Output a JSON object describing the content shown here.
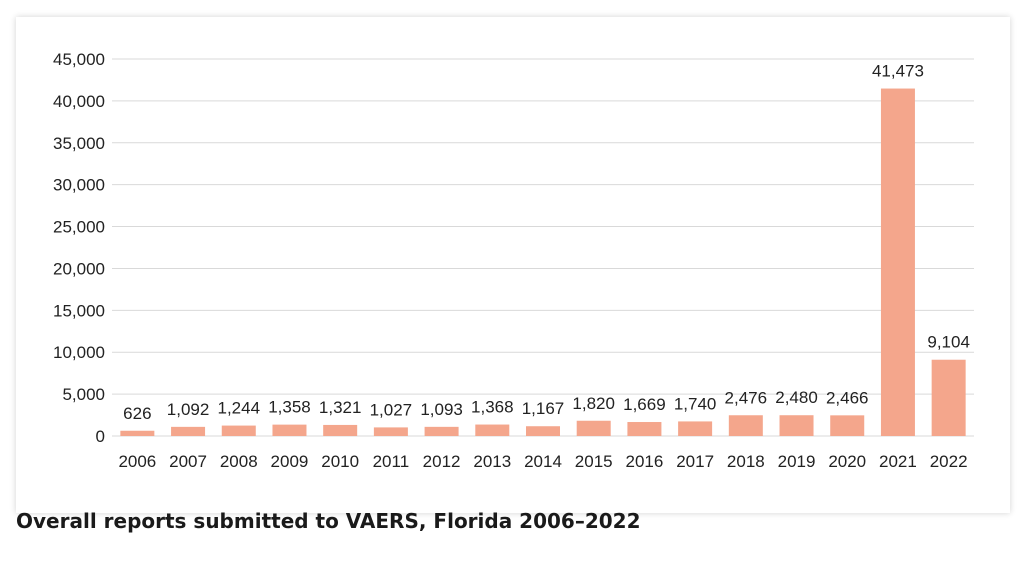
{
  "caption": "Overall reports submitted to VAERS, Florida 2006–2022",
  "colors": {
    "bar": "#f4a68c",
    "gridline": "#d9d9d9",
    "text": "#222222"
  },
  "chart_data": {
    "type": "bar",
    "categories": [
      "2006",
      "2007",
      "2008",
      "2009",
      "2010",
      "2011",
      "2012",
      "2013",
      "2014",
      "2015",
      "2016",
      "2017",
      "2018",
      "2019",
      "2020",
      "2021",
      "2022"
    ],
    "values": [
      626,
      1092,
      1244,
      1358,
      1321,
      1027,
      1093,
      1368,
      1167,
      1820,
      1669,
      1740,
      2476,
      2480,
      2466,
      41473,
      9104
    ],
    "value_labels": [
      "626",
      "1,092",
      "1,244",
      "1,358",
      "1,321",
      "1,027",
      "1,093",
      "1,368",
      "1,167",
      "1,820",
      "1,669",
      "1,740",
      "2,476",
      "2,480",
      "2,466",
      "41,473",
      "9,104"
    ],
    "y_ticks": [
      "0",
      "5,000",
      "10,000",
      "15,000",
      "20,000",
      "25,000",
      "30,000",
      "35,000",
      "40,000",
      "45,000"
    ],
    "ylim": [
      0,
      45000
    ],
    "grid": true,
    "legend": "none"
  }
}
